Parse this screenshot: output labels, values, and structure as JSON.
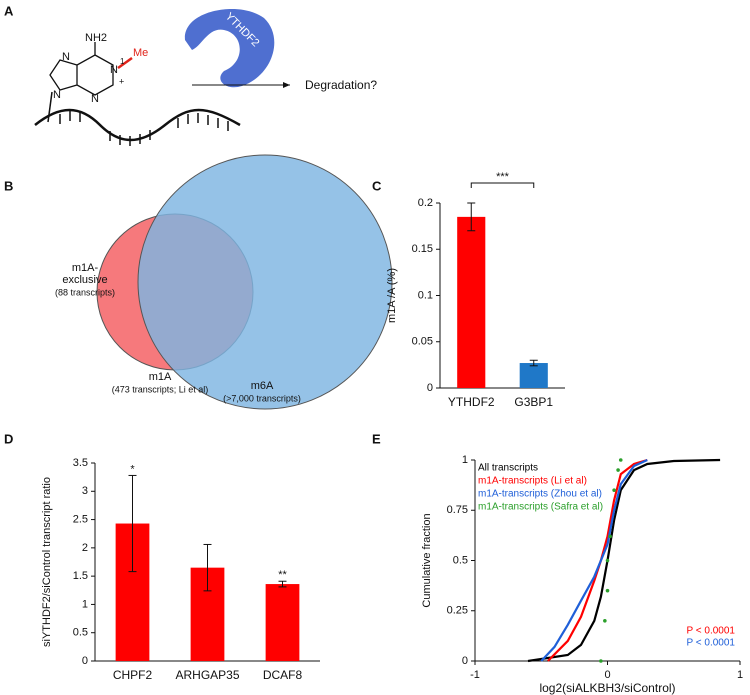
{
  "panel_labels": [
    "A",
    "B",
    "C",
    "D",
    "E"
  ],
  "diagram": {
    "amine": "NH2",
    "nitrogen": "N",
    "position": "1",
    "charge": "+",
    "methyl": "Me",
    "protein": "YTHDF2",
    "outcome": "Degradation?"
  },
  "venn": {
    "exclusive_line1": "m1A-",
    "exclusive_line2": "exclusive",
    "exclusive_count": "(88 transcripts)",
    "m1a": "m1A",
    "m1a_count": "(473 transcripts; Li et al)",
    "m6a": "m6A",
    "m6a_count": "(>7,000 transcripts)"
  },
  "chart_data": [
    {
      "type": "bar",
      "categories": [
        "YTHDF2",
        "G3BP1"
      ],
      "values": [
        0.185,
        0.027
      ],
      "errors": [
        0.015,
        0.003
      ],
      "colors": [
        "#ff0000",
        "#1f78c8"
      ],
      "ylim": [
        0,
        0.2
      ],
      "yticks": [
        0,
        0.05,
        0.1,
        0.15,
        0.2
      ],
      "y_label": "m1A /A (%)",
      "significance": "***"
    },
    {
      "type": "bar",
      "categories": [
        "CHPF2",
        "ARHGAP35",
        "DCAF8"
      ],
      "values": [
        2.43,
        1.65,
        1.36
      ],
      "errors": [
        0.85,
        0.41,
        0.05
      ],
      "color": "#ff0000",
      "ylim": [
        0,
        3.5
      ],
      "yticks": [
        0,
        0.5,
        1,
        1.5,
        2,
        2.5,
        3,
        3.5
      ],
      "y_label": "siYTHDF2/siControl transcript ratio",
      "bar_significance": [
        "*",
        null,
        "**"
      ]
    },
    {
      "type": "line",
      "x_label": "log2(siALKBH3/siControl)",
      "y_label": "Cumulative fraction",
      "xlim": [
        -1,
        1
      ],
      "xticks": [
        -1,
        0,
        1
      ],
      "ylim": [
        0,
        1
      ],
      "yticks": [
        0,
        0.25,
        0.5,
        0.75,
        1
      ],
      "legend": "upper left",
      "series": [
        {
          "name": "All transcripts",
          "color": "#000000",
          "x": [
            -0.6,
            -0.3,
            -0.2,
            -0.1,
            -0.05,
            0,
            0.05,
            0.1,
            0.2,
            0.3,
            0.5,
            0.85
          ],
          "y": [
            0,
            0.03,
            0.08,
            0.2,
            0.32,
            0.5,
            0.7,
            0.85,
            0.95,
            0.98,
            0.995,
            1
          ]
        },
        {
          "name": "m1A-transcripts (Li et al)",
          "color": "#ff0000",
          "x": [
            -0.45,
            -0.3,
            -0.2,
            -0.1,
            -0.05,
            0,
            0.05,
            0.1,
            0.2,
            0.3
          ],
          "y": [
            0,
            0.1,
            0.22,
            0.4,
            0.5,
            0.62,
            0.8,
            0.93,
            0.98,
            1
          ]
        },
        {
          "name": "m1A-transcripts (Zhou et al)",
          "color": "#1f5fd8",
          "x": [
            -0.5,
            -0.4,
            -0.3,
            -0.2,
            -0.1,
            0,
            0.05,
            0.1,
            0.2,
            0.3
          ],
          "y": [
            0,
            0.07,
            0.18,
            0.3,
            0.42,
            0.58,
            0.75,
            0.88,
            0.97,
            1
          ]
        },
        {
          "name": "m1A-transcripts (Safra et al)",
          "color": "#2ca02c",
          "line": false,
          "x": [
            -0.05,
            -0.02,
            0,
            0,
            0.02,
            0.05,
            0.08,
            0.1
          ],
          "y": [
            0,
            0.2,
            0.35,
            0.5,
            0.62,
            0.85,
            0.95,
            1
          ]
        }
      ],
      "annotations": [
        {
          "text": "P < 0.0001",
          "color": "#ff0000"
        },
        {
          "text": "P < 0.0001",
          "color": "#1f5fd8"
        }
      ]
    }
  ]
}
